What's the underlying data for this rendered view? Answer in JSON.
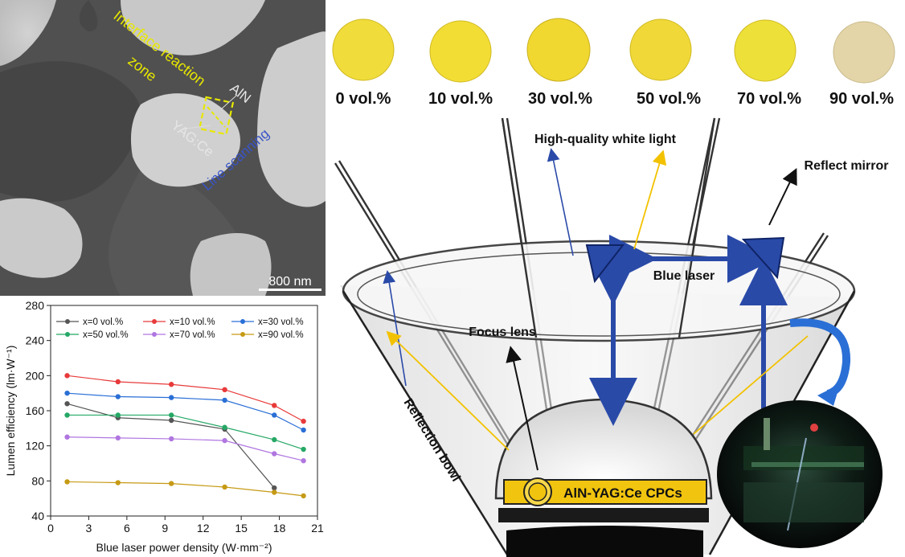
{
  "sem": {
    "label_interface": "Interface reaction",
    "label_zone": "zone",
    "label_aln": "AlN",
    "label_yag": "YAG:Ce",
    "label_line_scanning": "Line scanning",
    "scale_bar": "800 nm",
    "colors": {
      "interface": "#e8e800",
      "line_scanning": "#3a55c8",
      "labels": "#e6e6e6"
    }
  },
  "samples": {
    "labels": [
      "0 vol.%",
      "10 vol.%",
      "30 vol.%",
      "50 vol.%",
      "70 vol.%",
      "90 vol.%"
    ],
    "colors": [
      "#f0dc3a",
      "#f2dd35",
      "#f0d830",
      "#efd838",
      "#ede038",
      "#e4d5a8"
    ]
  },
  "diagram": {
    "white_light": "High-quality white light",
    "reflect_mirror": "Reflect mirror",
    "blue_laser": "Blue laser",
    "focus_lens": "Focus lens",
    "reflection_bowl": "Reflection bowl",
    "cpc": "AlN-YAG:Ce CPCs",
    "colors": {
      "blue": "#2a4aa8",
      "yellow": "#f2c200",
      "cpc_bar": "#f1c40f"
    }
  },
  "chart_data": {
    "type": "line",
    "xlabel": "Blue laser power density (W·mm⁻²)",
    "ylabel": "Lumen efficiency (lm·W⁻¹)",
    "xlim": [
      0,
      21
    ],
    "ylim": [
      40,
      280
    ],
    "xticks": [
      0,
      3,
      6,
      9,
      12,
      15,
      18,
      21
    ],
    "yticks": [
      40,
      80,
      120,
      160,
      200,
      240,
      280
    ],
    "legend_position": "top",
    "series": [
      {
        "name": "x=0 vol.%",
        "color": "#555555",
        "x": [
          1.3,
          5.3,
          9.5,
          13.7,
          17.6
        ],
        "values": [
          168,
          152,
          149,
          139,
          72
        ]
      },
      {
        "name": "x=10 vol.%",
        "color": "#e83a3a",
        "x": [
          1.3,
          5.3,
          9.5,
          13.7,
          17.6,
          19.9
        ],
        "values": [
          200,
          193,
          190,
          184,
          166,
          148
        ]
      },
      {
        "name": "x=30 vol.%",
        "color": "#2a6fd6",
        "x": [
          1.3,
          5.3,
          9.5,
          13.7,
          17.6,
          19.9
        ],
        "values": [
          180,
          176,
          175,
          172,
          155,
          138
        ]
      },
      {
        "name": "x=50 vol.%",
        "color": "#25a865",
        "x": [
          1.3,
          5.3,
          9.5,
          13.7,
          17.6,
          19.9
        ],
        "values": [
          155,
          155,
          155,
          141,
          127,
          116
        ]
      },
      {
        "name": "x=70 vol.%",
        "color": "#b076e0",
        "x": [
          1.3,
          5.3,
          9.5,
          13.7,
          17.6,
          19.9
        ],
        "values": [
          130,
          129,
          128,
          126,
          111,
          103
        ]
      },
      {
        "name": "x=90 vol.%",
        "color": "#c69a14",
        "x": [
          1.3,
          5.3,
          9.5,
          13.7,
          17.6,
          19.9
        ],
        "values": [
          79,
          78,
          77,
          73,
          67,
          63
        ]
      }
    ]
  }
}
